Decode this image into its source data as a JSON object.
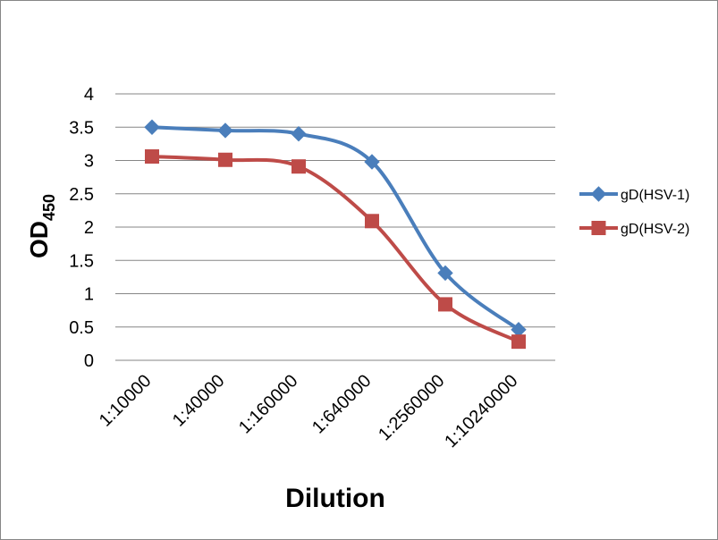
{
  "chart_data": {
    "type": "line",
    "categories": [
      "1:10000",
      "1:40000",
      "1:160000",
      "1:640000",
      "1:2560000",
      "1:10240000"
    ],
    "series": [
      {
        "name": "gD(HSV-1)",
        "values": [
          3.5,
          3.45,
          3.4,
          2.98,
          1.31,
          0.46
        ],
        "color": "#4a7ebb",
        "marker": "diamond"
      },
      {
        "name": "gD(HSV-2)",
        "values": [
          3.06,
          3.01,
          2.91,
          2.09,
          0.84,
          0.28
        ],
        "color": "#be4b48",
        "marker": "square"
      }
    ],
    "xlabel": "Dilution",
    "ylabel": {
      "main": "OD",
      "subscript": "450"
    },
    "ylim": [
      0,
      4
    ],
    "yticks": [
      "0",
      "0.5",
      "1",
      "1.5",
      "2",
      "2.5",
      "3",
      "3.5",
      "4"
    ],
    "grid": "horizontal",
    "legend": "right",
    "smooth": true
  }
}
